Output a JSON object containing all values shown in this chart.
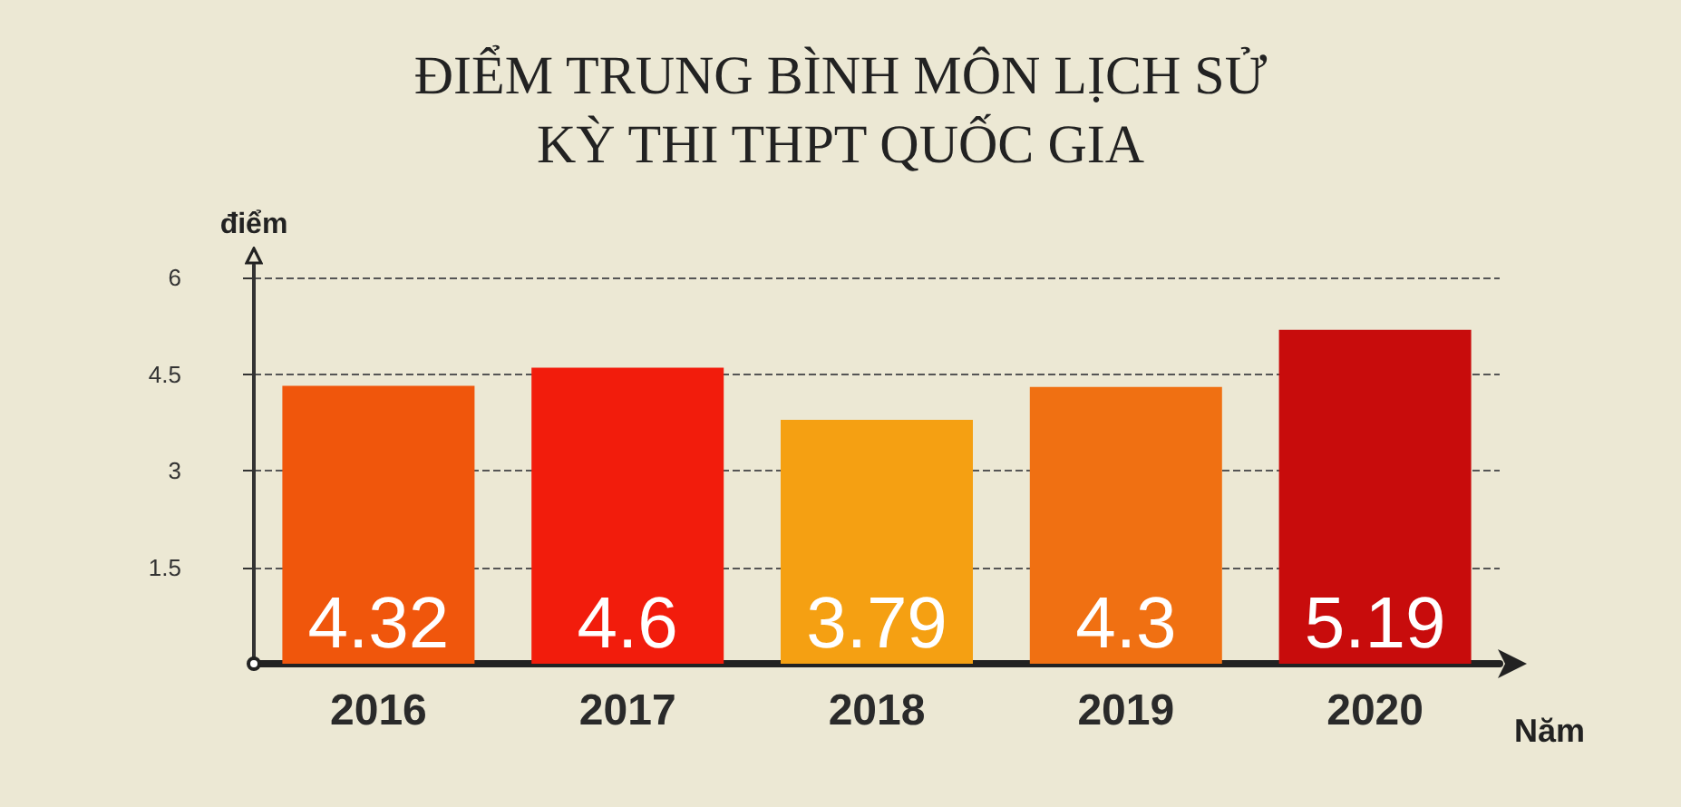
{
  "chart_data": {
    "type": "bar",
    "title": "ĐIỂM TRUNG BÌNH MÔN LỊCH SỬ",
    "subtitle": "KỲ THI THPT QUỐC GIA",
    "xlabel": "Năm",
    "ylabel": "điểm",
    "categories": [
      "2016",
      "2017",
      "2018",
      "2019",
      "2020"
    ],
    "values": [
      4.32,
      4.6,
      3.79,
      4.3,
      5.19
    ],
    "colors": [
      "#f0560c",
      "#f21c0c",
      "#f5a012",
      "#f07012",
      "#c80c0c"
    ],
    "ylim": [
      0,
      6.2
    ],
    "yticks": [
      1.5,
      3,
      4.5,
      6
    ],
    "grid": "y",
    "data_labels": true
  }
}
